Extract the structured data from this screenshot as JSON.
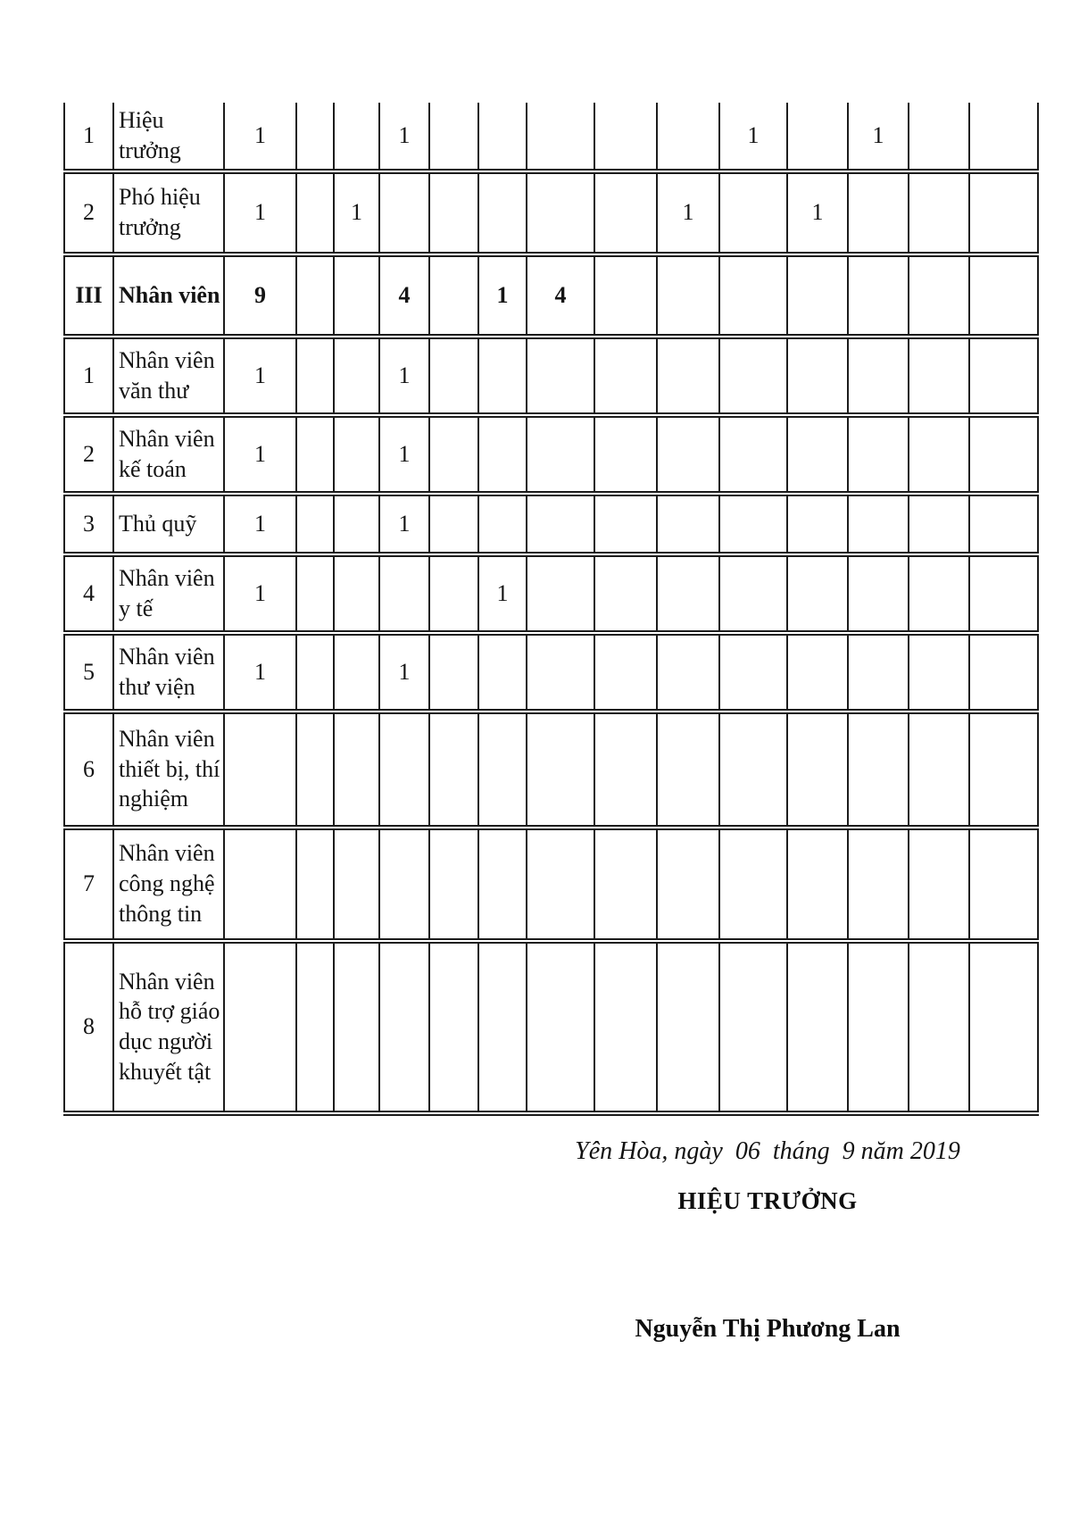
{
  "table": {
    "rows": [
      {
        "stt": "1",
        "name": "Hiệu trưởng",
        "bold": false,
        "values": [
          "1",
          "",
          "",
          "1",
          "",
          "",
          "",
          "",
          "",
          "1",
          "",
          "1",
          "",
          ""
        ]
      },
      {
        "stt": "2",
        "name": "Phó hiệu trưởng",
        "bold": false,
        "values": [
          "1",
          "",
          "1",
          "",
          "",
          "",
          "",
          "",
          "1",
          "",
          "1",
          "",
          "",
          ""
        ]
      },
      {
        "stt": "III",
        "name": "Nhân viên",
        "bold": true,
        "values": [
          "9",
          "",
          "",
          "4",
          "",
          "1",
          "4",
          "",
          "",
          "",
          "",
          "",
          "",
          ""
        ]
      },
      {
        "stt": "1",
        "name": "Nhân viên văn thư",
        "bold": false,
        "values": [
          "1",
          "",
          "",
          "1",
          "",
          "",
          "",
          "",
          "",
          "",
          "",
          "",
          "",
          ""
        ]
      },
      {
        "stt": "2",
        "name": "Nhân viên kế toán",
        "bold": false,
        "values": [
          "1",
          "",
          "",
          "1",
          "",
          "",
          "",
          "",
          "",
          "",
          "",
          "",
          "",
          ""
        ]
      },
      {
        "stt": "3",
        "name": "Thủ quỹ",
        "bold": false,
        "values": [
          "1",
          "",
          "",
          "1",
          "",
          "",
          "",
          "",
          "",
          "",
          "",
          "",
          "",
          ""
        ]
      },
      {
        "stt": "4",
        "name": "Nhân viên y tế",
        "bold": false,
        "values": [
          "1",
          "",
          "",
          "",
          "",
          "1",
          "",
          "",
          "",
          "",
          "",
          "",
          "",
          ""
        ]
      },
      {
        "stt": "5",
        "name": "Nhân viên thư viện",
        "bold": false,
        "values": [
          "1",
          "",
          "",
          "1",
          "",
          "",
          "",
          "",
          "",
          "",
          "",
          "",
          "",
          ""
        ]
      },
      {
        "stt": "6",
        "name": "Nhân viên thiết bị, thí nghiệm",
        "bold": false,
        "values": [
          "",
          "",
          "",
          "",
          "",
          "",
          "",
          "",
          "",
          "",
          "",
          "",
          "",
          ""
        ]
      },
      {
        "stt": "7",
        "name": "Nhân viên công nghệ thông tin",
        "bold": false,
        "values": [
          "",
          "",
          "",
          "",
          "",
          "",
          "",
          "",
          "",
          "",
          "",
          "",
          "",
          ""
        ]
      },
      {
        "stt": "8",
        "name": "Nhân viên hỗ trợ giáo dục người khuyết tật",
        "bold": false,
        "values": [
          "",
          "",
          "",
          "",
          "",
          "",
          "",
          "",
          "",
          "",
          "",
          "",
          "",
          ""
        ]
      }
    ]
  },
  "signature": {
    "place_date": "Yên Hòa, ngày  06  tháng  9 năm 2019",
    "role": "HIỆU TRƯỞNG",
    "name": "Nguyễn Thị Phương Lan"
  }
}
